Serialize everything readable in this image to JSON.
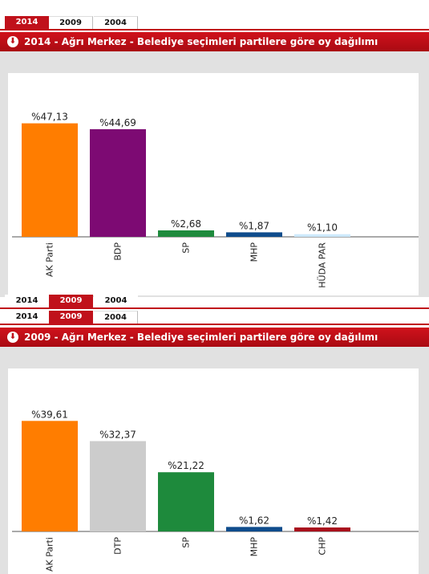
{
  "tabs": [
    "2014",
    "2009",
    "2004"
  ],
  "colors": {
    "accent": "#c0111b"
  },
  "chart_data": [
    {
      "type": "bar",
      "title": "2014 - Ağrı Merkez - Belediye seçimleri partilere göre oy dağılımı",
      "active_tab": "2014",
      "categories": [
        "AK Parti",
        "BDP",
        "SP",
        "MHP",
        "HÜDA PAR"
      ],
      "values": [
        47.13,
        44.69,
        2.68,
        1.87,
        1.1
      ],
      "labels": [
        "%47,13",
        "%44,69",
        "%2,68",
        "%1,87",
        "%1,10"
      ],
      "colors": [
        "#ff7d00",
        "#7d0a73",
        "#1e8a3c",
        "#0f4c8c",
        "#cde9fb"
      ],
      "ylim": [
        0,
        50
      ]
    },
    {
      "type": "bar",
      "title": "2009 - Ağrı Merkez - Belediye seçimleri partilere göre oy dağılımı",
      "active_tab": "2009",
      "categories": [
        "AK Parti",
        "DTP",
        "SP",
        "MHP",
        "CHP"
      ],
      "values": [
        39.61,
        32.37,
        21.22,
        1.62,
        1.42
      ],
      "labels": [
        "%39,61",
        "%32,37",
        "%21,22",
        "%1,62",
        "%1,42"
      ],
      "colors": [
        "#ff7d00",
        "#cccccc",
        "#1e8a3c",
        "#0f4c8c",
        "#a8101b"
      ],
      "ylim": [
        0,
        42
      ]
    }
  ]
}
